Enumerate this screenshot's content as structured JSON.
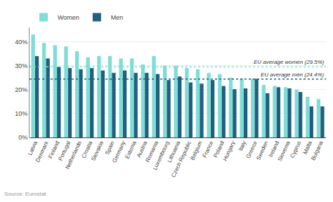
{
  "chart_data": {
    "type": "bar",
    "categories": [
      "Latvia",
      "Denmark",
      "Finland",
      "Portugal",
      "Netherlands",
      "Croatia",
      "Slovakia",
      "Spain",
      "Germany",
      "Estonia",
      "Austria",
      "Romania",
      "Luxembourg",
      "Lithuania",
      "Czech Republic",
      "Belgium",
      "France",
      "Poland",
      "Hungary",
      "Italy",
      "Greece",
      "Sweden",
      "Ireland",
      "Slovenia",
      "Cyprus",
      "Malta",
      "Bulgaria"
    ],
    "series": [
      {
        "name": "Women",
        "color": "#7eddd6",
        "values": [
          43,
          39.5,
          38.5,
          38,
          36,
          33.5,
          34,
          34,
          33,
          33,
          30.5,
          34,
          30,
          30,
          29,
          28.5,
          27,
          26.5,
          25,
          24.5,
          24.5,
          22,
          21.5,
          21,
          20,
          17,
          16
        ]
      },
      {
        "name": "Men",
        "color": "#1f6080",
        "values": [
          34,
          33,
          29.5,
          29,
          28.5,
          29,
          28,
          27,
          28,
          27,
          27,
          26.5,
          24,
          25.5,
          23,
          22.5,
          24,
          21.5,
          20.2,
          20.5,
          24.5,
          18.5,
          21,
          20.5,
          19,
          13,
          13
        ]
      }
    ],
    "ylim": [
      0,
      46
    ],
    "yticks": [
      {
        "value": 0,
        "label": "0%"
      },
      {
        "value": 10,
        "label": "10%"
      },
      {
        "value": 20,
        "label": "20%"
      },
      {
        "value": 30,
        "label": "30%"
      },
      {
        "value": 40,
        "label": "40%"
      }
    ],
    "grid": true,
    "legend": "upper left",
    "annotations": [
      {
        "text": "EU average women (29.5%)",
        "value": 29.5,
        "color": "#7eddd6",
        "line_style": "dotted"
      },
      {
        "text": "EU average men (24.4%)",
        "value": 24.4,
        "color": "#1f6080",
        "line_style": "dotted"
      },
      {
        "text": "Source: Eurostat"
      }
    ]
  }
}
